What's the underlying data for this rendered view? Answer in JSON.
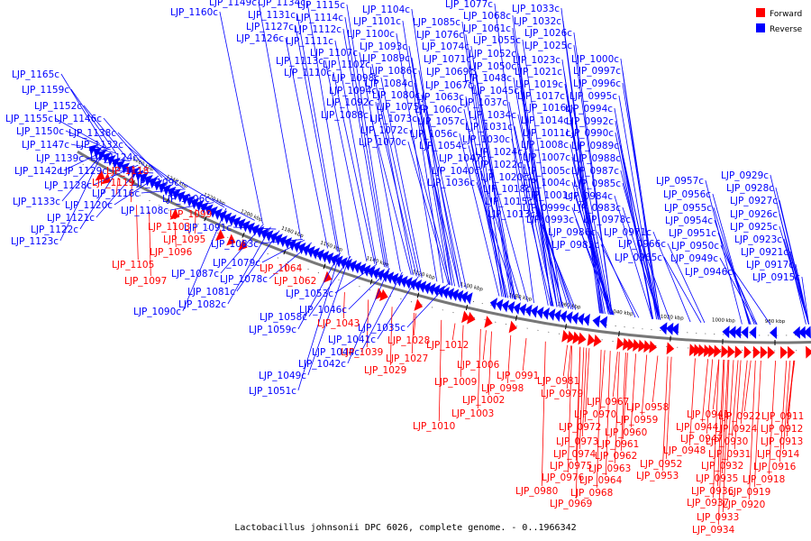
{
  "caption": "Lactobacillus johnsonii DPC 6026, complete genome. - 0..1966342",
  "legend": [
    {
      "label": "Forward",
      "color": "#ff0000"
    },
    {
      "label": "Reverse",
      "color": "#0000ff"
    }
  ],
  "colors": {
    "forward": "#ff0000",
    "reverse": "#0000ff",
    "backbone": "#777777"
  },
  "kbp_ticks": [
    "1260 kbp",
    "1240 kbp",
    "1220 kbp",
    "1200 kbp",
    "1180 kbp",
    "1160 kbp",
    "1140 kbp",
    "1120 kbp",
    "1100 kbp",
    "1080 kbp",
    "1060 kbp",
    "1040 kbp",
    "1020 kbp",
    "1000 kbp",
    "980 kbp"
  ],
  "genes": [
    {
      "name": "LJP_1160c",
      "strand": "reverse"
    },
    {
      "name": "LJP_1149c",
      "strand": "reverse"
    },
    {
      "name": "LJP_1134c",
      "strand": "reverse"
    },
    {
      "name": "LJP_1131c",
      "strand": "reverse"
    },
    {
      "name": "LJP_1127c",
      "strand": "reverse"
    },
    {
      "name": "LJP_1126c",
      "strand": "reverse"
    },
    {
      "name": "LJP_1115c",
      "strand": "reverse"
    },
    {
      "name": "LJP_1114c",
      "strand": "reverse"
    },
    {
      "name": "LJP_1112c",
      "strand": "reverse"
    },
    {
      "name": "LJP_1111c",
      "strand": "reverse"
    },
    {
      "name": "LJP_1104c",
      "strand": "reverse"
    },
    {
      "name": "LJP_1101c",
      "strand": "reverse"
    },
    {
      "name": "LJP_1100c",
      "strand": "reverse"
    },
    {
      "name": "LJP_1107c",
      "strand": "reverse"
    },
    {
      "name": "LJP_1113c",
      "strand": "reverse"
    },
    {
      "name": "LJP_1102c",
      "strand": "reverse"
    },
    {
      "name": "LJP_1110c",
      "strand": "reverse"
    },
    {
      "name": "LJP_1093c",
      "strand": "reverse"
    },
    {
      "name": "LJP_1089c",
      "strand": "reverse"
    },
    {
      "name": "LJP_1086c",
      "strand": "reverse"
    },
    {
      "name": "LJP_1098c",
      "strand": "reverse"
    },
    {
      "name": "LJP_1094c",
      "strand": "reverse"
    },
    {
      "name": "LJP_1092c",
      "strand": "reverse"
    },
    {
      "name": "LJP_1088c",
      "strand": "reverse"
    },
    {
      "name": "LJP_1084c",
      "strand": "reverse"
    },
    {
      "name": "LJP_1080c",
      "strand": "reverse"
    },
    {
      "name": "LJP_1075c",
      "strand": "reverse"
    },
    {
      "name": "LJP_1073c",
      "strand": "reverse"
    },
    {
      "name": "LJP_1072c",
      "strand": "reverse"
    },
    {
      "name": "LJP_1070c",
      "strand": "reverse"
    },
    {
      "name": "LJP_1085c",
      "strand": "reverse"
    },
    {
      "name": "LJP_1076c",
      "strand": "reverse"
    },
    {
      "name": "LJP_1074c",
      "strand": "reverse"
    },
    {
      "name": "LJP_1071c",
      "strand": "reverse"
    },
    {
      "name": "LJP_1069c",
      "strand": "reverse"
    },
    {
      "name": "LJP_1067c",
      "strand": "reverse"
    },
    {
      "name": "LJP_1063c",
      "strand": "reverse"
    },
    {
      "name": "LJP_1060c",
      "strand": "reverse"
    },
    {
      "name": "LJP_1057c",
      "strand": "reverse"
    },
    {
      "name": "LJP_1056c",
      "strand": "reverse"
    },
    {
      "name": "LJP_1054c",
      "strand": "reverse"
    },
    {
      "name": "LJP_1077c",
      "strand": "reverse"
    },
    {
      "name": "LJP_1068c",
      "strand": "reverse"
    },
    {
      "name": "LJP_1061c",
      "strand": "reverse"
    },
    {
      "name": "LJP_1055c",
      "strand": "reverse"
    },
    {
      "name": "LJP_1052c",
      "strand": "reverse"
    },
    {
      "name": "LJP_1050c",
      "strand": "reverse"
    },
    {
      "name": "LJP_1048c",
      "strand": "reverse"
    },
    {
      "name": "LJP_1045c",
      "strand": "reverse"
    },
    {
      "name": "LJP_1037c",
      "strand": "reverse"
    },
    {
      "name": "LJP_1034c",
      "strand": "reverse"
    },
    {
      "name": "LJP_1031c",
      "strand": "reverse"
    },
    {
      "name": "LJP_1030c",
      "strand": "reverse"
    },
    {
      "name": "LJP_1047c",
      "strand": "reverse"
    },
    {
      "name": "LJP_1040c",
      "strand": "reverse"
    },
    {
      "name": "LJP_1036c",
      "strand": "reverse"
    },
    {
      "name": "LJP_1024c",
      "strand": "reverse"
    },
    {
      "name": "LJP_1022c",
      "strand": "reverse"
    },
    {
      "name": "LJP_1020c",
      "strand": "reverse"
    },
    {
      "name": "LJP_1018c",
      "strand": "reverse"
    },
    {
      "name": "LJP_1015c",
      "strand": "reverse"
    },
    {
      "name": "LJP_1013c",
      "strand": "reverse"
    },
    {
      "name": "LJP_1033c",
      "strand": "reverse"
    },
    {
      "name": "LJP_1032c",
      "strand": "reverse"
    },
    {
      "name": "LJP_1026c",
      "strand": "reverse"
    },
    {
      "name": "LJP_1025c",
      "strand": "reverse"
    },
    {
      "name": "LJP_1023c",
      "strand": "reverse"
    },
    {
      "name": "LJP_1021c",
      "strand": "reverse"
    },
    {
      "name": "LJP_1019c",
      "strand": "reverse"
    },
    {
      "name": "LJP_1017c",
      "strand": "reverse"
    },
    {
      "name": "LJP_1016c",
      "strand": "reverse"
    },
    {
      "name": "LJP_1014c",
      "strand": "reverse"
    },
    {
      "name": "LJP_1011c",
      "strand": "reverse"
    },
    {
      "name": "LJP_1008c",
      "strand": "reverse"
    },
    {
      "name": "LJP_1007c",
      "strand": "reverse"
    },
    {
      "name": "LJP_1005c",
      "strand": "reverse"
    },
    {
      "name": "LJP_1004c",
      "strand": "reverse"
    },
    {
      "name": "LJP_1001c",
      "strand": "reverse"
    },
    {
      "name": "LJP_0999c",
      "strand": "reverse"
    },
    {
      "name": "LJP_0993c",
      "strand": "reverse"
    },
    {
      "name": "LJP_0986c",
      "strand": "reverse"
    },
    {
      "name": "LJP_0982c",
      "strand": "reverse"
    },
    {
      "name": "LJP_1000c",
      "strand": "reverse"
    },
    {
      "name": "LJP_0997c",
      "strand": "reverse"
    },
    {
      "name": "LJP_0996c",
      "strand": "reverse"
    },
    {
      "name": "LJP_0995c",
      "strand": "reverse"
    },
    {
      "name": "LJP_0994c",
      "strand": "reverse"
    },
    {
      "name": "LJP_0992c",
      "strand": "reverse"
    },
    {
      "name": "LJP_0990c",
      "strand": "reverse"
    },
    {
      "name": "LJP_0989c",
      "strand": "reverse"
    },
    {
      "name": "LJP_0988c",
      "strand": "reverse"
    },
    {
      "name": "LJP_0987c",
      "strand": "reverse"
    },
    {
      "name": "LJP_0985c",
      "strand": "reverse"
    },
    {
      "name": "LJP_0984c",
      "strand": "reverse"
    },
    {
      "name": "LJP_0983c",
      "strand": "reverse"
    },
    {
      "name": "LJP_0978c",
      "strand": "reverse"
    },
    {
      "name": "LJP_0971c",
      "strand": "reverse"
    },
    {
      "name": "LJP_0966c",
      "strand": "reverse"
    },
    {
      "name": "LJP_0965c",
      "strand": "reverse"
    },
    {
      "name": "LJP_0957c",
      "strand": "reverse"
    },
    {
      "name": "LJP_0956c",
      "strand": "reverse"
    },
    {
      "name": "LJP_0955c",
      "strand": "reverse"
    },
    {
      "name": "LJP_0954c",
      "strand": "reverse"
    },
    {
      "name": "LJP_0951c",
      "strand": "reverse"
    },
    {
      "name": "LJP_0950c",
      "strand": "reverse"
    },
    {
      "name": "LJP_0949c",
      "strand": "reverse"
    },
    {
      "name": "LJP_0946c",
      "strand": "reverse"
    },
    {
      "name": "LJP_0929c",
      "strand": "reverse"
    },
    {
      "name": "LJP_0928c",
      "strand": "reverse"
    },
    {
      "name": "LJP_0927c",
      "strand": "reverse"
    },
    {
      "name": "LJP_0926c",
      "strand": "reverse"
    },
    {
      "name": "LJP_0925c",
      "strand": "reverse"
    },
    {
      "name": "LJP_0923c",
      "strand": "reverse"
    },
    {
      "name": "LJP_0921c",
      "strand": "reverse"
    },
    {
      "name": "LJP_0917c",
      "strand": "reverse"
    },
    {
      "name": "LJP_0915c",
      "strand": "reverse"
    },
    {
      "name": "LJP_1165c",
      "strand": "reverse"
    },
    {
      "name": "LJP_1159c",
      "strand": "reverse"
    },
    {
      "name": "LJP_1152c",
      "strand": "reverse"
    },
    {
      "name": "LJP_1155c",
      "strand": "reverse"
    },
    {
      "name": "LJP_1146c",
      "strand": "reverse"
    },
    {
      "name": "LJP_1150c",
      "strand": "reverse"
    },
    {
      "name": "LJP_1138c",
      "strand": "reverse"
    },
    {
      "name": "LJP_1147c",
      "strand": "reverse"
    },
    {
      "name": "LJP_1132c",
      "strand": "reverse"
    },
    {
      "name": "LJP_1139c",
      "strand": "reverse"
    },
    {
      "name": "LJP_1124c",
      "strand": "reverse"
    },
    {
      "name": "LJP_1142c",
      "strand": "reverse"
    },
    {
      "name": "LJP_1129c",
      "strand": "reverse"
    },
    {
      "name": "LJP_1128c",
      "strand": "reverse"
    },
    {
      "name": "LJP_1116c",
      "strand": "reverse"
    },
    {
      "name": "LJP_1133c",
      "strand": "reverse"
    },
    {
      "name": "LJP_1120c",
      "strand": "reverse"
    },
    {
      "name": "LJP_1121c",
      "strand": "reverse"
    },
    {
      "name": "LJP_1122c",
      "strand": "reverse"
    },
    {
      "name": "LJP_1123c",
      "strand": "reverse"
    },
    {
      "name": "LJP_1109c",
      "strand": "reverse"
    },
    {
      "name": "LJP_1106c",
      "strand": "reverse"
    },
    {
      "name": "LJP_1108c",
      "strand": "reverse"
    },
    {
      "name": "LJP_1091c",
      "strand": "reverse"
    },
    {
      "name": "LJP_1083c",
      "strand": "reverse"
    },
    {
      "name": "LJP_1079c",
      "strand": "reverse"
    },
    {
      "name": "LJP_1087c",
      "strand": "reverse"
    },
    {
      "name": "LJP_1078c",
      "strand": "reverse"
    },
    {
      "name": "LJP_1081c",
      "strand": "reverse"
    },
    {
      "name": "LJP_1082c",
      "strand": "reverse"
    },
    {
      "name": "LJP_1090c",
      "strand": "reverse"
    },
    {
      "name": "LJP_1053c",
      "strand": "reverse"
    },
    {
      "name": "LJP_1046c",
      "strand": "reverse"
    },
    {
      "name": "LJP_1058c",
      "strand": "reverse"
    },
    {
      "name": "LJP_1059c",
      "strand": "reverse"
    },
    {
      "name": "LJP_1035c",
      "strand": "reverse"
    },
    {
      "name": "LJP_1041c",
      "strand": "reverse"
    },
    {
      "name": "LJP_1044c",
      "strand": "reverse"
    },
    {
      "name": "LJP_1042c",
      "strand": "reverse"
    },
    {
      "name": "LJP_1049c",
      "strand": "reverse"
    },
    {
      "name": "LJP_1051c",
      "strand": "reverse"
    },
    {
      "name": "LJP_1118",
      "strand": "forward"
    },
    {
      "name": "LJP_1119",
      "strand": "forward"
    },
    {
      "name": "LJP_1099",
      "strand": "forward"
    },
    {
      "name": "LJP_1103",
      "strand": "forward"
    },
    {
      "name": "LJP_1095",
      "strand": "forward"
    },
    {
      "name": "LJP_1096",
      "strand": "forward"
    },
    {
      "name": "LJP_1105",
      "strand": "forward"
    },
    {
      "name": "LJP_1097",
      "strand": "forward"
    },
    {
      "name": "LJP_1064",
      "strand": "forward"
    },
    {
      "name": "LJP_1062",
      "strand": "forward"
    },
    {
      "name": "LJP_1043",
      "strand": "forward"
    },
    {
      "name": "LJP_1039",
      "strand": "forward"
    },
    {
      "name": "LJP_1028",
      "strand": "forward"
    },
    {
      "name": "LJP_1027",
      "strand": "forward"
    },
    {
      "name": "LJP_1029",
      "strand": "forward"
    },
    {
      "name": "LJP_1012",
      "strand": "forward"
    },
    {
      "name": "LJP_1006",
      "strand": "forward"
    },
    {
      "name": "LJP_1009",
      "strand": "forward"
    },
    {
      "name": "LJP_1002",
      "strand": "forward"
    },
    {
      "name": "LJP_1003",
      "strand": "forward"
    },
    {
      "name": "LJP_1010",
      "strand": "forward"
    },
    {
      "name": "LJP_0998",
      "strand": "forward"
    },
    {
      "name": "LJP_0991",
      "strand": "forward"
    },
    {
      "name": "LJP_0981",
      "strand": "forward"
    },
    {
      "name": "LJP_0979",
      "strand": "forward"
    },
    {
      "name": "LJP_0967",
      "strand": "forward"
    },
    {
      "name": "LJP_0970",
      "strand": "forward"
    },
    {
      "name": "LJP_0972",
      "strand": "forward"
    },
    {
      "name": "LJP_0959",
      "strand": "forward"
    },
    {
      "name": "LJP_0960",
      "strand": "forward"
    },
    {
      "name": "LJP_0973",
      "strand": "forward"
    },
    {
      "name": "LJP_0961",
      "strand": "forward"
    },
    {
      "name": "LJP_0974",
      "strand": "forward"
    },
    {
      "name": "LJP_0962",
      "strand": "forward"
    },
    {
      "name": "LJP_0975",
      "strand": "forward"
    },
    {
      "name": "LJP_0963",
      "strand": "forward"
    },
    {
      "name": "LJP_0976",
      "strand": "forward"
    },
    {
      "name": "LJP_0964",
      "strand": "forward"
    },
    {
      "name": "LJP_0980",
      "strand": "forward"
    },
    {
      "name": "LJP_0968",
      "strand": "forward"
    },
    {
      "name": "LJP_0969",
      "strand": "forward"
    },
    {
      "name": "LJP_0958",
      "strand": "forward"
    },
    {
      "name": "LJP_0952",
      "strand": "forward"
    },
    {
      "name": "LJP_0953",
      "strand": "forward"
    },
    {
      "name": "LJP_0941",
      "strand": "forward"
    },
    {
      "name": "LJP_0944",
      "strand": "forward"
    },
    {
      "name": "LJP_0947",
      "strand": "forward"
    },
    {
      "name": "LJP_0948",
      "strand": "forward"
    },
    {
      "name": "LJP_0922",
      "strand": "forward"
    },
    {
      "name": "LJP_0924",
      "strand": "forward"
    },
    {
      "name": "LJP_0930",
      "strand": "forward"
    },
    {
      "name": "LJP_0931",
      "strand": "forward"
    },
    {
      "name": "LJP_0932",
      "strand": "forward"
    },
    {
      "name": "LJP_0935",
      "strand": "forward"
    },
    {
      "name": "LJP_0936",
      "strand": "forward"
    },
    {
      "name": "LJP_0937",
      "strand": "forward"
    },
    {
      "name": "LJP_0933",
      "strand": "forward"
    },
    {
      "name": "LJP_0934",
      "strand": "forward"
    },
    {
      "name": "LJP_0911",
      "strand": "forward"
    },
    {
      "name": "LJP_0912",
      "strand": "forward"
    },
    {
      "name": "LJP_0913",
      "strand": "forward"
    },
    {
      "name": "LJP_0914",
      "strand": "forward"
    },
    {
      "name": "LJP_0916",
      "strand": "forward"
    },
    {
      "name": "LJP_0918",
      "strand": "forward"
    },
    {
      "name": "LJP_0919",
      "strand": "forward"
    },
    {
      "name": "LJP_0920",
      "strand": "forward"
    }
  ]
}
